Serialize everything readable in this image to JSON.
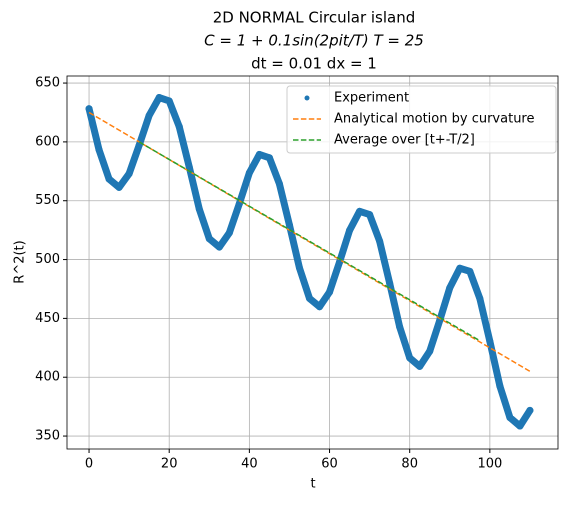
{
  "chart_data": {
    "type": "line",
    "title": [
      "2D NORMAL Circular island",
      "C = 1 + 0.1sin(2pit/T) T = 25",
      "dt = 0.01 dx = 1"
    ],
    "x_label": "t",
    "y_label": "R^2(t)",
    "xlim": [
      -5.5,
      117
    ],
    "ylim": [
      339,
      656
    ],
    "xticks": [
      0,
      20,
      40,
      60,
      80,
      100
    ],
    "yticks": [
      350,
      400,
      450,
      500,
      550,
      600,
      650
    ],
    "grid": true,
    "legend": "upper right",
    "series": [
      {
        "name": "Experiment",
        "color": "#1f77b4",
        "style": "dots",
        "x": [
          0,
          2.5,
          5,
          7.5,
          10,
          12.5,
          15,
          17.5,
          20,
          22.5,
          25,
          27.5,
          30,
          32.5,
          35,
          37.5,
          40,
          42.5,
          45,
          47.5,
          50,
          52.5,
          55,
          57.5,
          60,
          62.5,
          65,
          67.5,
          70,
          72.5,
          75,
          77.5,
          80,
          82.5,
          85,
          87.5,
          90,
          92.5,
          95,
          97.5,
          100,
          102.5,
          105,
          107.5,
          110
        ],
        "values": [
          628.2,
          593.2,
          568.4,
          561.3,
          573.0,
          597.1,
          622.5,
          637.7,
          634.8,
          613.0,
          578.7,
          543.0,
          517.7,
          510.6,
          522.7,
          547.5,
          573.7,
          589.3,
          586.5,
          564.3,
          529.3,
          492.9,
          467.0,
          459.9,
          472.4,
          497.9,
          524.8,
          541.0,
          538.2,
          515.6,
          479.9,
          442.7,
          416.4,
          409.2,
          422.1,
          448.3,
          476.0,
          492.6,
          490.0,
          466.9,
          430.5,
          392.5,
          365.7,
          358.5,
          371.8
        ]
      },
      {
        "name": "Analytical motion by curvature",
        "color": "#ff7f0e",
        "style": "dashed",
        "x": [
          0,
          110
        ],
        "values": [
          625,
          405
        ]
      },
      {
        "name": "Average over [t+-T/2]",
        "color": "#2ca02c",
        "style": "dashed",
        "x": [
          12.5,
          97.5
        ],
        "values": [
          600,
          431
        ]
      }
    ]
  }
}
